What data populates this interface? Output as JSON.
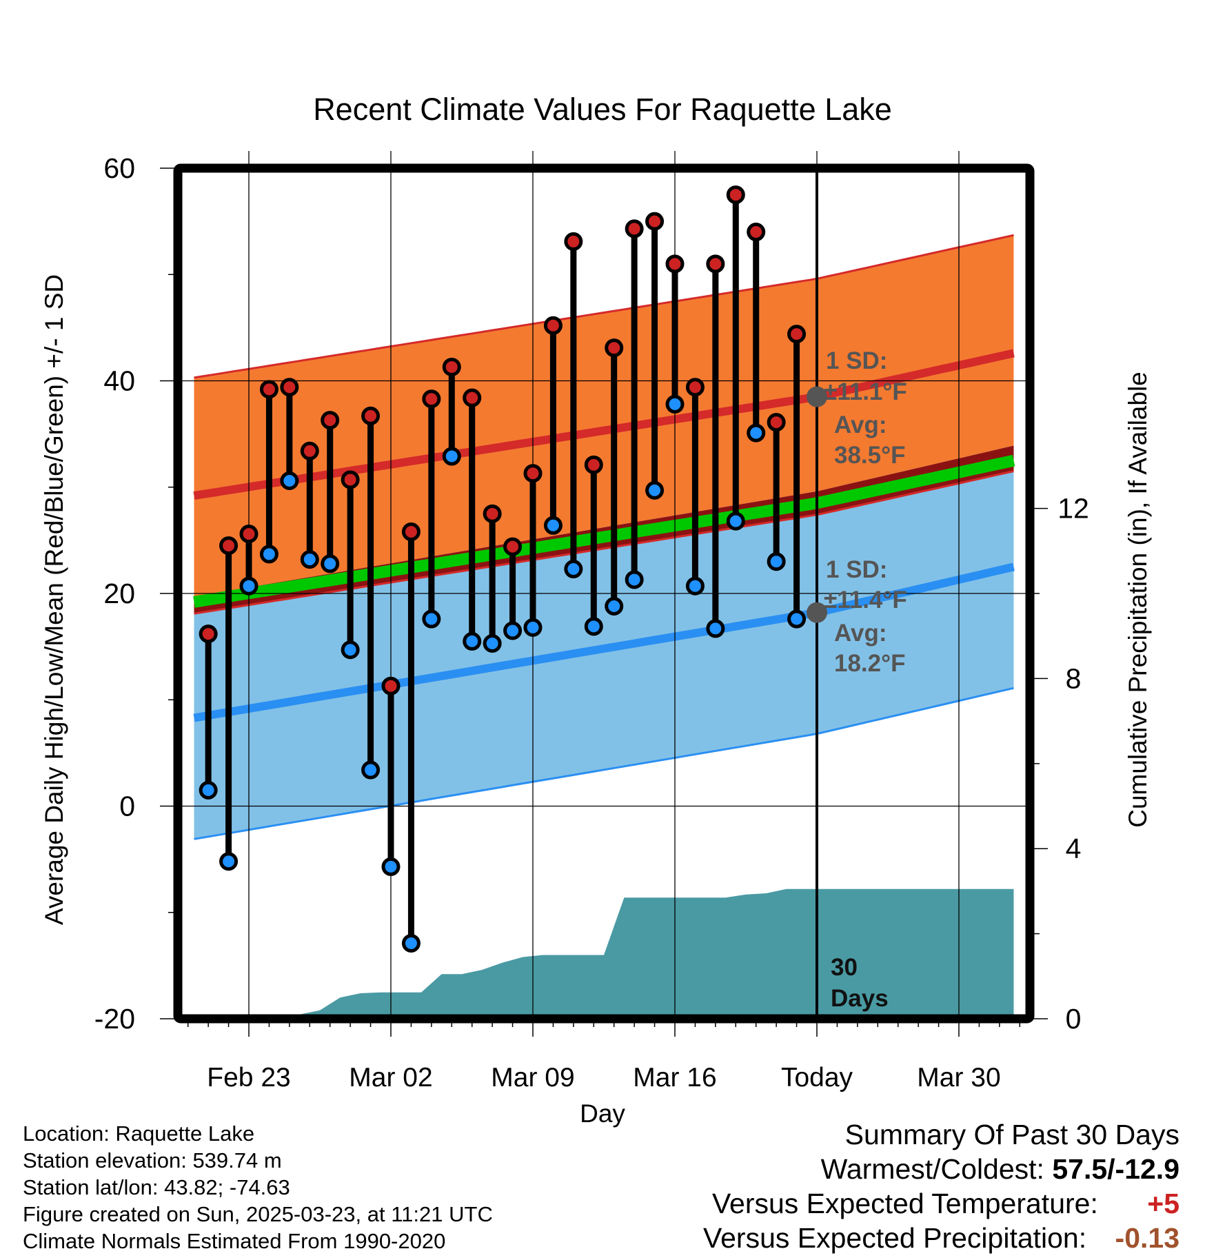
{
  "chart_data": {
    "type": "line",
    "title": "Recent Climate Values For Raquette Lake",
    "xlabel": "Day",
    "ylabel": "Average Daily High/Low/Mean (Red/Blue/Green) +/- 1 SD",
    "y2label": "Cumulative Precipitation (in), If Available",
    "ylim": [
      -20,
      60
    ],
    "y2lim": [
      0,
      20
    ],
    "xlim": [
      -3.5,
      38.5
    ],
    "x_ticks": [
      {
        "x": 0,
        "label": "Feb 23"
      },
      {
        "x": 7,
        "label": "Mar 02"
      },
      {
        "x": 14,
        "label": "Mar 09"
      },
      {
        "x": 21,
        "label": "Mar 16"
      },
      {
        "x": 28,
        "label": "Today"
      },
      {
        "x": 35,
        "label": "Mar 30"
      }
    ],
    "y_ticks": [
      -20,
      0,
      20,
      40,
      60
    ],
    "y2_ticks": [
      0,
      4,
      8,
      12
    ],
    "today_x": 28,
    "normals": {
      "x": [
        -2.7,
        28,
        37.7
      ],
      "high_mean": [
        29.2,
        38.5,
        42.6
      ],
      "high_sd": 11.1,
      "low_mean": [
        8.3,
        18.2,
        22.5
      ],
      "low_sd": 11.4,
      "mean_mean": [
        19.2,
        28.5,
        32.5
      ]
    },
    "series": [
      {
        "name": "High",
        "color": "#cc2222",
        "values": [
          16.2,
          24.5,
          25.6,
          39.2,
          39.4,
          33.4,
          36.3,
          30.7,
          36.7,
          11.3,
          25.8,
          38.3,
          41.3,
          38.4,
          27.5,
          24.4,
          31.3,
          45.2,
          53.1,
          32.1,
          43.1,
          54.3,
          55.0,
          51.0,
          39.4,
          51.0,
          57.5,
          54.0,
          36.1,
          44.4
        ]
      },
      {
        "name": "Low",
        "color": "#1e90ff",
        "values": [
          1.5,
          -5.2,
          20.7,
          23.7,
          30.6,
          23.2,
          22.8,
          14.7,
          3.4,
          -5.7,
          -12.9,
          17.6,
          32.9,
          15.5,
          15.3,
          16.5,
          16.8,
          26.4,
          22.3,
          16.9,
          18.8,
          21.3,
          29.7,
          37.8,
          20.7,
          16.7,
          26.8,
          35.1,
          23.0,
          17.6
        ]
      }
    ],
    "day_x": [
      -2,
      -1,
      0,
      1,
      2,
      3,
      4,
      5,
      6,
      7,
      8,
      9,
      10,
      11,
      12,
      13,
      14,
      15,
      16,
      17,
      18,
      19,
      20,
      21,
      22,
      23,
      24,
      25,
      26,
      27
    ],
    "precip": {
      "x": [
        -2.2,
        1.5,
        2.5,
        3.5,
        4.5,
        5.5,
        6.5,
        8.5,
        9.5,
        10.5,
        11.5,
        12.5,
        13.5,
        14.5,
        17.5,
        18.5,
        19.5,
        20.5,
        23.5,
        24.5,
        25.5,
        26.5,
        27.5,
        37.7
      ],
      "values": [
        0,
        0,
        0.1,
        0.2,
        0.5,
        0.6,
        0.62,
        0.62,
        1.05,
        1.05,
        1.15,
        1.32,
        1.45,
        1.5,
        1.5,
        2.85,
        2.85,
        2.85,
        2.85,
        2.92,
        2.95,
        3.05,
        3.05,
        3.05
      ]
    },
    "annotations": {
      "high_sd_label": "1 SD:",
      "high_sd_value": "±11.1°F",
      "high_avg_label": "Avg:",
      "high_avg_value": "38.5°F",
      "low_sd_label": "1 SD:",
      "low_sd_value": "±11.4°F",
      "low_avg_label": "Avg:",
      "low_avg_value": "18.2°F",
      "days_line1": "30",
      "days_line2": "Days"
    },
    "colors": {
      "high_band": "#f47a30",
      "high_mean": "#d42a2a",
      "low_band": "#82c1e7",
      "low_mean": "#2a8ff2",
      "overlap": "#8b1212",
      "mean_line": "#00c800",
      "precip": "#4a9aa3",
      "annotation": "#555555"
    }
  },
  "info": {
    "location": "Location: Raquette Lake",
    "elevation": "Station elevation: 539.74 m",
    "latlon": "Station lat/lon: 43.82; -74.63",
    "created": "Figure created on Sun, 2025-03-23, at 11:21 UTC",
    "normals": "Climate Normals Estimated From 1990-2020"
  },
  "summary": {
    "title": "Summary Of Past 30 Days",
    "warm_cold_label": "Warmest/Coldest:",
    "warm_cold_value": "57.5/-12.9",
    "temp_label": "Versus Expected Temperature:",
    "temp_value": "+5",
    "precip_label": "Versus Expected Precipitation:",
    "precip_value": "-0.13"
  }
}
